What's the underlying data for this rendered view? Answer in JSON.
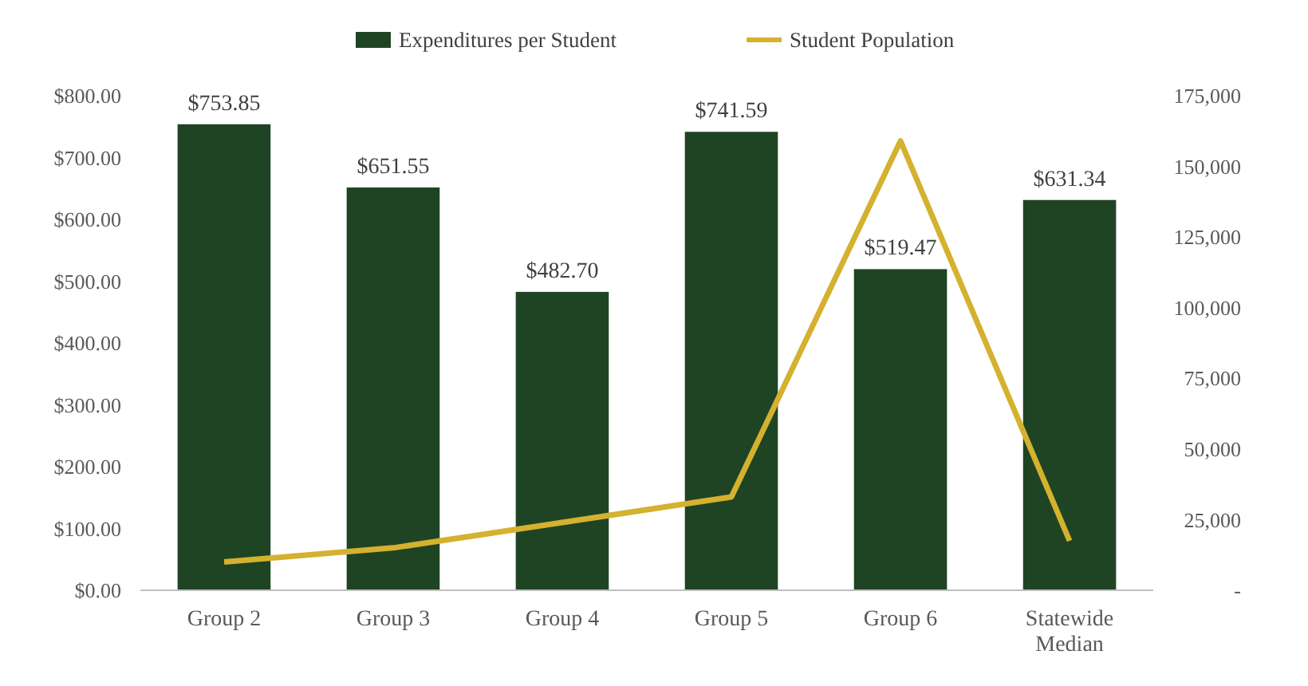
{
  "chart_data": {
    "type": "bar",
    "categories": [
      "Group 2",
      "Group 3",
      "Group 4",
      "Group 5",
      "Group 6",
      "Statewide Median"
    ],
    "series": [
      {
        "name": "Expenditures per Student",
        "color": "#1f4424",
        "values": [
          753.85,
          651.55,
          482.7,
          741.59,
          519.47,
          631.34
        ],
        "value_labels": [
          "$753.85",
          "$651.55",
          "$482.70",
          "$741.59",
          "$519.47",
          "$631.34"
        ]
      },
      {
        "name": "Student Population",
        "type": "line",
        "axis": "y2",
        "color": "#d4b12f",
        "values": [
          10000,
          15000,
          24000,
          33000,
          159000,
          17500
        ]
      }
    ],
    "ylim": [
      0,
      800
    ],
    "yticks": [
      {
        "value": 0,
        "label": "$0.00"
      },
      {
        "value": 100,
        "label": "$100.00"
      },
      {
        "value": 200,
        "label": "$200.00"
      },
      {
        "value": 300,
        "label": "$300.00"
      },
      {
        "value": 400,
        "label": "$400.00"
      },
      {
        "value": 500,
        "label": "$500.00"
      },
      {
        "value": 600,
        "label": "$600.00"
      },
      {
        "value": 700,
        "label": "$700.00"
      },
      {
        "value": 800,
        "label": "$800.00"
      }
    ],
    "y2lim": [
      0,
      175000
    ],
    "y2ticks": [
      {
        "value": 0,
        "label": "-"
      },
      {
        "value": 25000,
        "label": "25,000"
      },
      {
        "value": 50000,
        "label": "50,000"
      },
      {
        "value": 75000,
        "label": "75,000"
      },
      {
        "value": 100000,
        "label": "100,000"
      },
      {
        "value": 125000,
        "label": "125,000"
      },
      {
        "value": 150000,
        "label": "150,000"
      },
      {
        "value": 175000,
        "label": "175,000"
      }
    ],
    "grid": false,
    "legend": "top",
    "marker": "none",
    "line_style": "solid"
  }
}
